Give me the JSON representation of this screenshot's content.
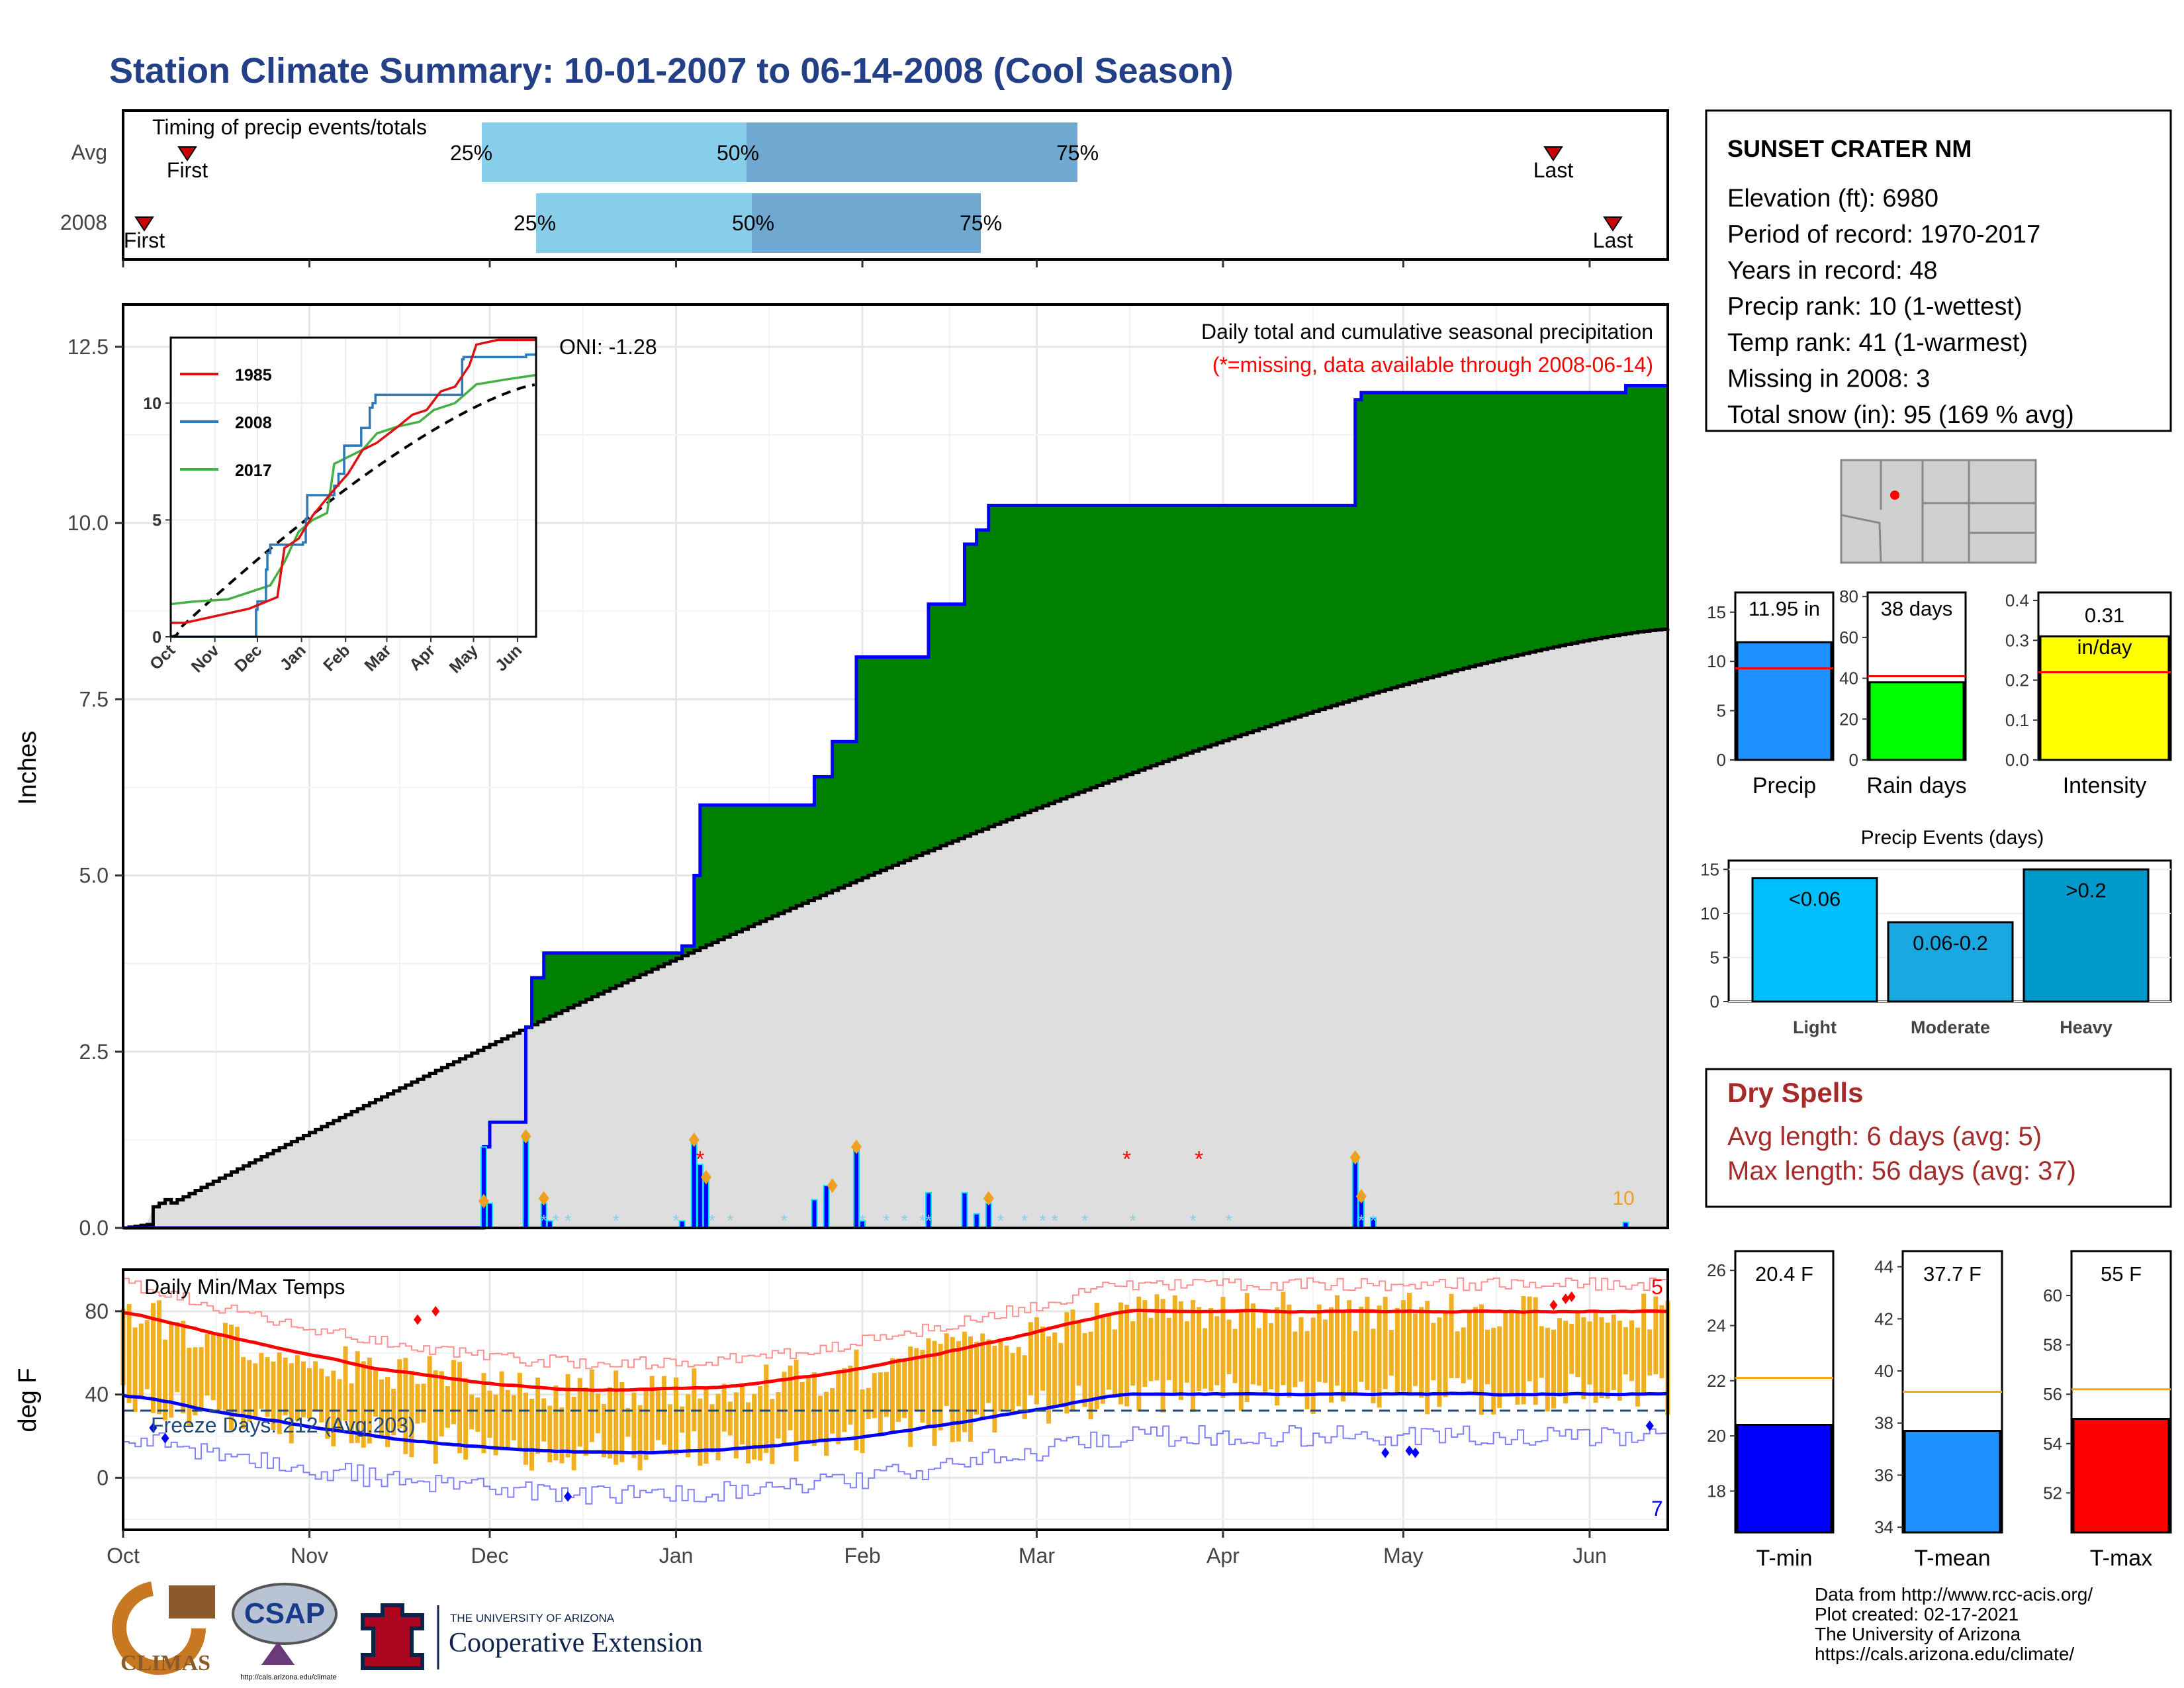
{
  "title": "Station Climate Summary: 10-01-2007 to 06-14-2008 (Cool Season)",
  "colors": {
    "title": "#233f86",
    "q1": "#87ceeb",
    "q2": "#6fa8d0",
    "cum_precip": "#008000",
    "avg_precip": "#dedede",
    "early_avg": "#8b5a00",
    "daily_bar": "#0000ff",
    "tmax": "#ff0000",
    "tmin": "#0000ff",
    "temp_bar": "#f0b020",
    "precip_bar": "#1e90ff",
    "raindays_bar": "#00ff00",
    "intensity_bar": "#ffff00",
    "light": "#00bfff",
    "moderate": "#1aa8e0",
    "heavy": "#0099cc",
    "dry_spell_text": "#a52a2a",
    "missing": "#ff0000"
  },
  "timing": {
    "heading": "Timing of precip events/totals",
    "rows": [
      {
        "label": "Avg",
        "first": "First",
        "last": "Last",
        "p25": "25%",
        "p50": "50%",
        "p75": "75%"
      },
      {
        "label": "2008",
        "first": "First",
        "last": "Last",
        "p25": "25%",
        "p50": "50%",
        "p75": "75%"
      }
    ]
  },
  "station": {
    "name": "SUNSET CRATER NM",
    "lines": [
      "Elevation (ft): 6980",
      "Period of record: 1970-2017",
      "Years in record: 48",
      "Precip rank: 10 (1-wettest)",
      "Temp rank: 41 (1-warmest)",
      "Missing in 2008: 3",
      "Total snow (in): 95 (169 % avg)"
    ]
  },
  "precip_panel": {
    "ylabel": "Inches",
    "title": "Daily total and cumulative seasonal precipitation",
    "missing_note": "(*=missing, data available through 2008-06-14)",
    "oni": "ONI: -1.28",
    "count_label": "10",
    "yticks": [
      "0.0",
      "2.5",
      "5.0",
      "7.5",
      "10.0",
      "12.5"
    ]
  },
  "inset": {
    "legend": [
      "1985",
      "2008",
      "2017"
    ],
    "yticks": [
      "0",
      "5",
      "10"
    ],
    "xticks": [
      "Oct",
      "Nov",
      "Dec",
      "Jan",
      "Feb",
      "Mar",
      "Apr",
      "May",
      "Jun"
    ]
  },
  "temp_panel": {
    "ylabel": "deg F",
    "title": "Daily Min/Max Temps",
    "freeze": "Freeze Days: 212 (Avg:203)",
    "count_high": "5",
    "count_low": "7",
    "yticks": [
      "0",
      "40",
      "80"
    ]
  },
  "months": [
    "Oct",
    "Nov",
    "Dec",
    "Jan",
    "Feb",
    "Mar",
    "Apr",
    "May",
    "Jun"
  ],
  "mini_precip": [
    {
      "label": "Precip",
      "value_text": "11.95 in",
      "yticks": [
        "0",
        "5",
        "10",
        "15"
      ]
    },
    {
      "label": "Rain days",
      "value_text": "38 days",
      "yticks": [
        "0",
        "20",
        "40",
        "60",
        "80"
      ]
    },
    {
      "label": "Intensity",
      "value_text": "0.31",
      "value_text2": "in/day",
      "yticks": [
        "0.0",
        "0.1",
        "0.2",
        "0.3",
        "0.4"
      ]
    }
  ],
  "events": {
    "title": "Precip Events (days)",
    "yticks": [
      "0",
      "5",
      "10",
      "15"
    ],
    "bars": [
      {
        "label": "Light",
        "text": "<0.06",
        "value": 14
      },
      {
        "label": "Moderate",
        "text": "0.06-0.2",
        "value": 9
      },
      {
        "label": "Heavy",
        "text": ">0.2",
        "value": 15
      }
    ]
  },
  "dry_spells": {
    "title": "Dry Spells",
    "line1": "Avg length: 6 days (avg: 5)",
    "line2": "Max length: 56 days (avg: 37)"
  },
  "mini_temp": [
    {
      "label": "T-min",
      "value_text": "20.4 F",
      "yticks": [
        "18",
        "20",
        "22",
        "24",
        "26"
      ]
    },
    {
      "label": "T-mean",
      "value_text": "37.7 F",
      "yticks": [
        "34",
        "36",
        "38",
        "40",
        "42",
        "44"
      ]
    },
    {
      "label": "T-max",
      "value_text": "55 F",
      "yticks": [
        "52",
        "54",
        "56",
        "58",
        "60"
      ]
    }
  ],
  "footer": {
    "lines": [
      "Data from http://www.rcc-acis.org/",
      "Plot created: 02-17-2021",
      "The University of Arizona",
      "https://cals.arizona.edu/climate/"
    ],
    "climas": "CLIMAS",
    "csap": "CSAP",
    "csap_url": "http://cals.arizona.edu/climate",
    "ua_small": "THE UNIVERSITY OF ARIZONA",
    "ua_big": "Cooperative Extension"
  },
  "chart_data": [
    {
      "type": "line",
      "title": "Daily total and cumulative seasonal precipitation",
      "ylabel": "Inches",
      "xlabels": [
        "Oct",
        "Nov",
        "Dec",
        "Jan",
        "Feb",
        "Mar",
        "Apr",
        "May",
        "Jun"
      ],
      "ylim": [
        0,
        13
      ],
      "series": [
        {
          "name": "2008 cumulative",
          "x_day": [
            0,
            66,
            68,
            72,
            76,
            87,
            104,
            113,
            123,
            126,
            128,
            135,
            141,
            143,
            148,
            150,
            156,
            158,
            180,
            189,
            201,
            202,
            258,
            260,
            265,
            270,
            275,
            280,
            285,
            290,
            295,
            300,
            305,
            310,
            313,
            316,
            320,
            325,
            330,
            335,
            340,
            345,
            350,
            355
          ],
          "values": [
            0.0,
            0.0,
            0.0,
            0.0,
            0.0,
            0.0,
            0.0,
            0.0,
            0.0,
            0.0,
            0.0,
            0.0,
            0.0,
            0.0,
            0.0,
            0.0,
            0.0,
            0.0,
            0.0,
            0.0,
            0.0,
            0.0,
            0.0,
            0.0,
            0.0,
            0.0,
            0.0,
            0.0,
            0.0,
            0.0,
            0.0,
            0.0,
            0.0,
            0.0,
            0.0,
            0.0,
            0.0,
            0.0,
            0.0,
            0.0,
            0.0,
            0.0,
            0.0,
            0.0
          ]
        },
        {
          "name": "2008 cumulative (step)",
          "x_day": [
            0,
            5,
            6,
            60,
            61,
            62,
            68,
            69,
            71,
            72,
            73,
            92,
            94,
            96,
            97,
            112,
            118,
            120,
            123,
            130,
            131,
            137,
            141,
            142,
            147,
            157,
            158,
            208,
            210,
            255
          ],
          "values": [
            0.0,
            0.0,
            0.0,
            0.0,
            1.15,
            1.52,
            2.85,
            3.4,
            3.55,
            3.72,
            3.9,
            3.95,
            5.0,
            6.0,
            6.0,
            6.4,
            6.92,
            8.1,
            8.85,
            8.85,
            9.7,
            9.9,
            10.25,
            10.25,
            10.25,
            10.25,
            10.25,
            10.25,
            11.85,
            11.95
          ]
        },
        {
          "name": "Avg cumulative",
          "x_day": [
            0,
            30,
            60,
            76,
            92,
            120,
            150,
            180,
            210,
            240,
            255
          ],
          "values": [
            0.0,
            1.2,
            2.4,
            2.85,
            3.95,
            4.9,
            5.9,
            6.85,
            7.6,
            8.2,
            8.6
          ]
        }
      ]
    },
    {
      "type": "bar",
      "title": "Precip Events (days)",
      "categories": [
        "Light",
        "Moderate",
        "Heavy"
      ],
      "values": [
        14,
        9,
        15
      ],
      "ylim": [
        0,
        16
      ]
    },
    {
      "type": "bar",
      "categories": [
        "Precip",
        "Rain days",
        "Intensity"
      ],
      "values": [
        11.95,
        38,
        0.31
      ],
      "averages": [
        9.3,
        41,
        0.22
      ]
    },
    {
      "type": "bar",
      "categories": [
        "T-min",
        "T-mean",
        "T-max"
      ],
      "values": [
        20.4,
        37.7,
        55
      ],
      "averages": [
        22.1,
        39.2,
        56.2
      ]
    }
  ]
}
